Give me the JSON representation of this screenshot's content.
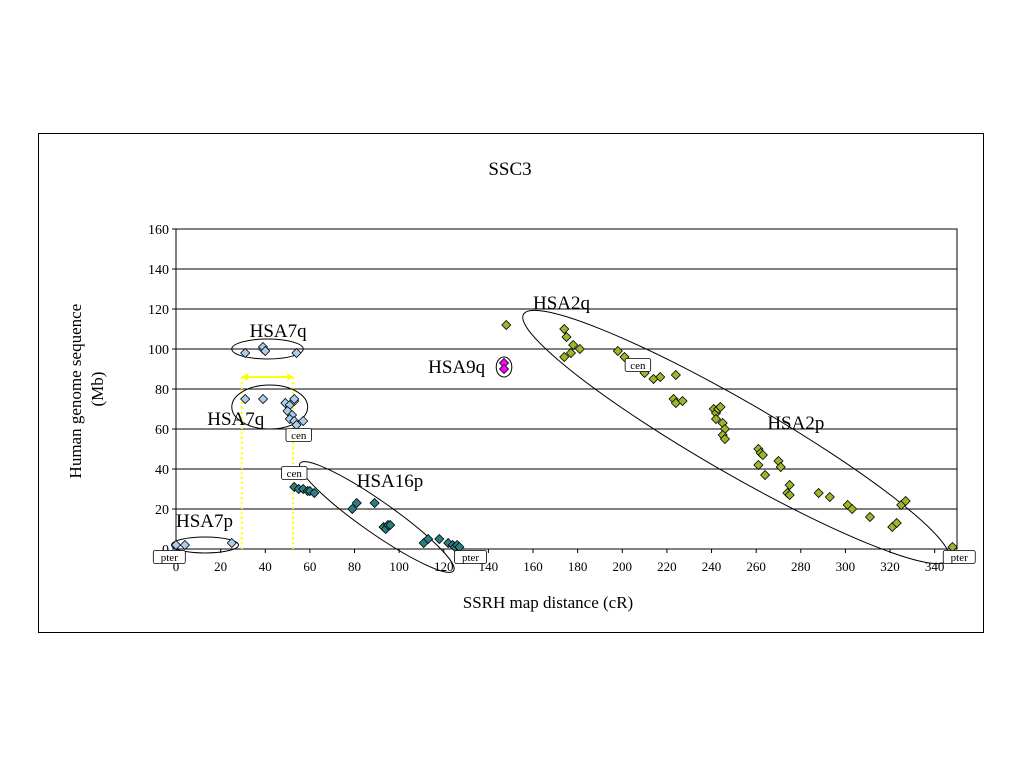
{
  "chart_data": {
    "type": "scatter",
    "title": "SSC3",
    "xlabel": "SSRH map distance (cR)",
    "ylabel_lines": [
      "Human genome sequence",
      "(Mb)"
    ],
    "xlim": [
      0,
      350
    ],
    "ylim": [
      0,
      160
    ],
    "x_ticks": [
      0,
      20,
      40,
      60,
      80,
      100,
      120,
      140,
      160,
      180,
      200,
      220,
      240,
      260,
      280,
      300,
      320,
      340
    ],
    "y_ticks": [
      0,
      20,
      40,
      60,
      80,
      100,
      120,
      140,
      160
    ],
    "grid": "horizontal",
    "series": [
      {
        "color": "#a9cdee",
        "points": [
          [
            0,
            2
          ],
          [
            4,
            2
          ],
          [
            25,
            3
          ],
          [
            31,
            98
          ],
          [
            31,
            75
          ],
          [
            39,
            100
          ],
          [
            39,
            101
          ],
          [
            40,
            99
          ],
          [
            39,
            75
          ],
          [
            54,
            98
          ],
          [
            49,
            73
          ],
          [
            51,
            72
          ],
          [
            53,
            74
          ],
          [
            53,
            75
          ],
          [
            50,
            69
          ],
          [
            52,
            67
          ],
          [
            51,
            65
          ],
          [
            53,
            64
          ],
          [
            57,
            64
          ],
          [
            54,
            62
          ]
        ]
      },
      {
        "color": "#2a7f84",
        "points": [
          [
            53,
            31
          ],
          [
            55,
            30
          ],
          [
            57,
            30
          ],
          [
            59,
            29
          ],
          [
            60,
            29
          ],
          [
            62,
            28
          ],
          [
            79,
            20
          ],
          [
            81,
            23
          ],
          [
            89,
            23
          ],
          [
            93,
            11
          ],
          [
            94,
            10
          ],
          [
            95,
            12
          ],
          [
            96,
            12
          ],
          [
            111,
            3
          ],
          [
            113,
            5
          ],
          [
            118,
            5
          ],
          [
            122,
            3
          ],
          [
            124,
            2
          ],
          [
            125,
            1
          ],
          [
            126,
            2
          ],
          [
            127,
            1
          ]
        ]
      },
      {
        "color": "#ff00ff",
        "points": [
          [
            147,
            93
          ],
          [
            147,
            90
          ]
        ]
      },
      {
        "color": "#99b828",
        "points": [
          [
            148,
            112
          ],
          [
            174,
            110
          ],
          [
            175,
            106
          ],
          [
            174,
            96
          ],
          [
            177,
            98
          ],
          [
            178,
            102
          ],
          [
            181,
            100
          ],
          [
            198,
            99
          ],
          [
            201,
            96
          ],
          [
            210,
            88
          ],
          [
            214,
            85
          ],
          [
            217,
            86
          ],
          [
            224,
            87
          ],
          [
            223,
            75
          ],
          [
            224,
            73
          ],
          [
            227,
            74
          ],
          [
            241,
            70
          ],
          [
            242,
            68
          ],
          [
            243,
            70
          ],
          [
            244,
            71
          ],
          [
            242,
            65
          ],
          [
            245,
            63
          ],
          [
            246,
            60
          ],
          [
            245,
            57
          ],
          [
            246,
            55
          ],
          [
            261,
            50
          ],
          [
            262,
            48
          ],
          [
            263,
            47
          ],
          [
            261,
            42
          ],
          [
            264,
            37
          ],
          [
            270,
            44
          ],
          [
            271,
            41
          ],
          [
            275,
            32
          ],
          [
            274,
            28
          ],
          [
            275,
            27
          ],
          [
            288,
            28
          ],
          [
            293,
            26
          ],
          [
            301,
            22
          ],
          [
            303,
            20
          ],
          [
            311,
            16
          ],
          [
            321,
            11
          ],
          [
            323,
            13
          ],
          [
            325,
            22
          ],
          [
            327,
            24
          ],
          [
            348,
            1
          ]
        ]
      }
    ],
    "annotations": [
      {
        "text": "HSA7q",
        "x": 33,
        "y": 106
      },
      {
        "text": "HSA7q",
        "x": 14,
        "y": 62
      },
      {
        "text": "HSA7p",
        "x": 0,
        "y": 11
      },
      {
        "text": "HSA16p",
        "x": 81,
        "y": 31
      },
      {
        "text": "HSA9q",
        "x": 113,
        "y": 88
      },
      {
        "text": "HSA2q",
        "x": 160,
        "y": 120
      },
      {
        "text": "HSA2p",
        "x": 265,
        "y": 60
      }
    ],
    "markers": [
      {
        "text": "cen",
        "x": 55,
        "y": 57
      },
      {
        "text": "cen",
        "x": 53,
        "y": 38
      },
      {
        "text": "cen",
        "x": 207,
        "y": 92
      },
      {
        "text": "pter",
        "x": -3,
        "y": -4
      },
      {
        "text": "pter",
        "x": 132,
        "y": -4
      },
      {
        "text": "pter",
        "x": 351,
        "y": -4
      }
    ],
    "ellipses": [
      {
        "cx": 41,
        "cy": 100,
        "rx": 16,
        "ry": 5,
        "angle": 0
      },
      {
        "cx": 42,
        "cy": 71,
        "rx": 17,
        "ry": 11,
        "angle": 0
      },
      {
        "cx": 13,
        "cy": 2,
        "rx": 15,
        "ry": 4,
        "angle": 0
      },
      {
        "cx": 90,
        "cy": 16,
        "rx": 42,
        "ry": 8,
        "angle": 35
      },
      {
        "cx": 147,
        "cy": 91,
        "rx": 3.5,
        "ry": 5,
        "angle": 0
      },
      {
        "cx": 251,
        "cy": 56,
        "rx": 110,
        "ry": 18,
        "angle": 30
      }
    ],
    "guides": {
      "vertical_x": [
        29.5,
        52.5
      ],
      "y_top": 86,
      "y_bottom": 0,
      "arrow_y": 86,
      "color": "#ffff00"
    }
  }
}
